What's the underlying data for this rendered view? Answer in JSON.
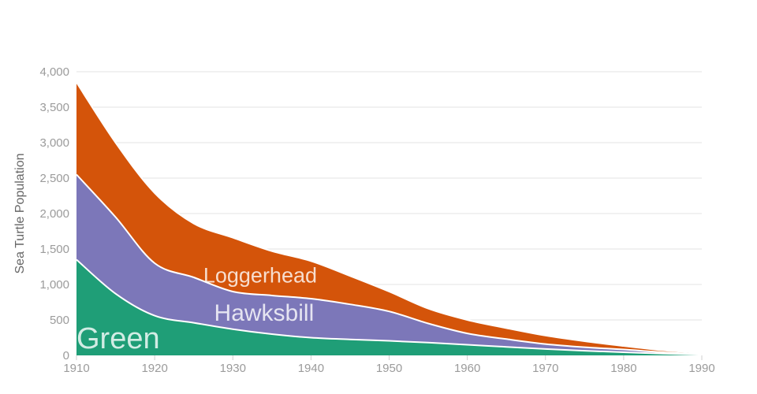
{
  "style": {
    "background": "#ffffff",
    "grid_color": "#e3e3e3",
    "x_tick_color": "#cfcfcf",
    "tick_label_color": "#9b9b9b",
    "axis_title_color": "#666666",
    "separator_color": "#ffffff",
    "series_label_color": "rgba(255,255,255,0.8)",
    "tick_font_size": 15,
    "axis_title_font_size": 16
  },
  "chart_data": {
    "type": "area",
    "stacked": true,
    "smoothing": "spline",
    "title": "",
    "xlabel": "",
    "ylabel": "Sea Turtle Population",
    "xlim": [
      1910,
      1990
    ],
    "ylim": [
      0,
      4000
    ],
    "grid": true,
    "legend_position": "inline-labels",
    "x": [
      1910,
      1915,
      1920,
      1925,
      1930,
      1935,
      1940,
      1945,
      1950,
      1955,
      1960,
      1965,
      1970,
      1975,
      1980,
      1985,
      1990
    ],
    "x_ticks": [
      1910,
      1920,
      1930,
      1940,
      1950,
      1960,
      1970,
      1980,
      1990
    ],
    "x_tick_labels": [
      "1910",
      "1920",
      "1930",
      "1940",
      "1950",
      "1960",
      "1970",
      "1980",
      "1990"
    ],
    "y_ticks": [
      0,
      500,
      1000,
      1500,
      2000,
      2500,
      3000,
      3500,
      4000
    ],
    "y_tick_labels": [
      "0",
      "500",
      "1,000",
      "1,500",
      "2,000",
      "2,500",
      "3,000",
      "3,500",
      "4,000"
    ],
    "series": [
      {
        "name": "Green",
        "color": "#1f9e77",
        "values": [
          1350,
          870,
          560,
          460,
          370,
          300,
          250,
          225,
          205,
          180,
          150,
          120,
          90,
          65,
          45,
          25,
          10
        ],
        "label": {
          "text": "Green",
          "x": 1910,
          "y": 100,
          "anchor": "start",
          "font_size": 38
        }
      },
      {
        "name": "Hawksbill",
        "color": "#7c77b9",
        "values": [
          1200,
          1080,
          740,
          640,
          530,
          545,
          550,
          495,
          415,
          270,
          160,
          110,
          70,
          50,
          38,
          20,
          8
        ],
        "label": {
          "text": "Hawksbill",
          "x": 1934,
          "y": 490,
          "anchor": "middle",
          "font_size": 30
        }
      },
      {
        "name": "Loggerhead",
        "color": "#d4540a",
        "values": [
          1300,
          1050,
          990,
          760,
          760,
          625,
          530,
          400,
          280,
          210,
          190,
          155,
          120,
          85,
          50,
          27,
          15
        ],
        "label": {
          "text": "Loggerhead",
          "x": 1933.5,
          "y": 1030,
          "anchor": "middle",
          "font_size": 27
        }
      }
    ]
  }
}
